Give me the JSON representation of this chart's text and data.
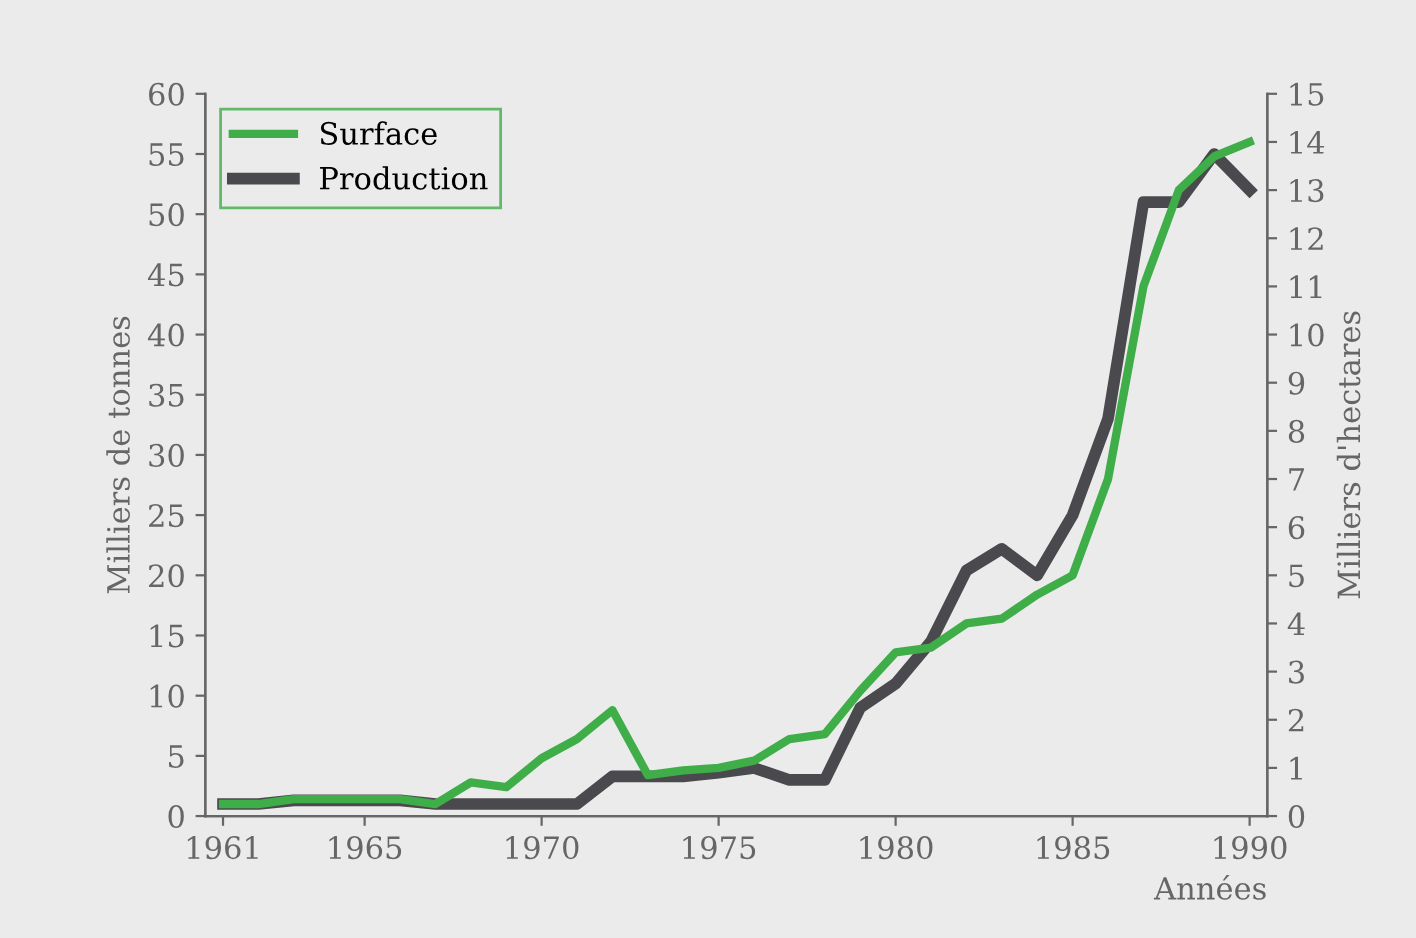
{
  "chart_data": {
    "type": "line",
    "xlabel": "Années",
    "ylabel": "Milliers de tonnes",
    "y2label": "Milliers d'hectares",
    "x": [
      1961,
      1962,
      1963,
      1964,
      1965,
      1966,
      1967,
      1968,
      1969,
      1970,
      1971,
      1972,
      1973,
      1974,
      1975,
      1976,
      1977,
      1978,
      1979,
      1980,
      1981,
      1982,
      1983,
      1984,
      1985,
      1986,
      1987,
      1988,
      1989,
      1990
    ],
    "series": [
      {
        "name": "Surface",
        "color": "#3fae49",
        "axis": "y2",
        "values": [
          0.25,
          0.25,
          0.35,
          0.35,
          0.35,
          0.35,
          0.25,
          0.7,
          0.6,
          1.2,
          1.6,
          2.2,
          0.85,
          0.95,
          1.0,
          1.15,
          1.6,
          1.7,
          2.6,
          3.4,
          3.5,
          4.0,
          4.1,
          4.6,
          5.0,
          7.0,
          11.0,
          13.0,
          13.7,
          14.0
        ]
      },
      {
        "name": "Production",
        "color": "#4a4a4e",
        "values": [
          1,
          1,
          1.3,
          1.3,
          1.3,
          1.3,
          1,
          1,
          1,
          1,
          1,
          3.3,
          3.3,
          3.3,
          3.6,
          4,
          3,
          3,
          9,
          11,
          14.5,
          20.4,
          22.2,
          20,
          25,
          33,
          51,
          51,
          55,
          52
        ]
      }
    ],
    "xlim": [
      1960.5,
      1990.5
    ],
    "xticks": [
      1961,
      1965,
      1970,
      1975,
      1980,
      1985,
      1990
    ],
    "ylim": [
      0,
      60
    ],
    "yticks": [
      0,
      5,
      10,
      15,
      20,
      25,
      30,
      35,
      40,
      45,
      50,
      55,
      60
    ],
    "y2lim": [
      0,
      15
    ],
    "y2ticks": [
      0,
      1,
      2,
      3,
      4,
      5,
      6,
      7,
      8,
      9,
      10,
      11,
      12,
      13,
      14,
      15
    ],
    "legend": "top left",
    "grid": false,
    "marker": "none",
    "line_style": "solid"
  }
}
